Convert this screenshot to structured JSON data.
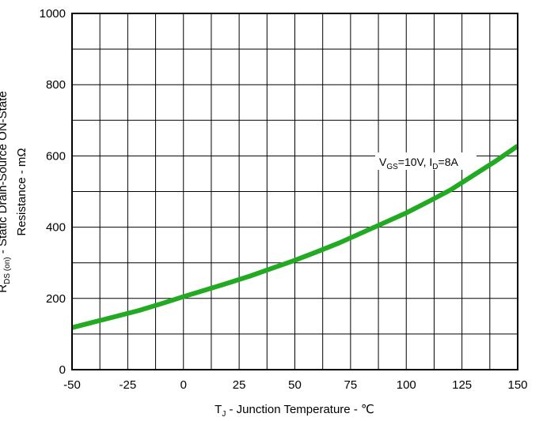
{
  "chart_data": {
    "type": "line",
    "title": "",
    "xlabel": {
      "main": "T",
      "sub": "J",
      "rest": " - Junction Temperature - ℃"
    },
    "ylabel": {
      "line1_main": "R",
      "line1_sub": "DS (on)",
      "line1_rest": " - Static Drain-Source ON-State",
      "line2": "Resistance - mΩ"
    },
    "xlim": [
      -50,
      150
    ],
    "ylim": [
      0,
      1000
    ],
    "x_ticks": [
      -50,
      -25,
      0,
      25,
      50,
      75,
      100,
      125,
      150
    ],
    "y_ticks": [
      0,
      200,
      400,
      600,
      800,
      1000
    ],
    "x_tick_labels": [
      "-50",
      "-25",
      "0",
      "25",
      "50",
      "75",
      "100",
      "125",
      "150"
    ],
    "y_tick_labels": [
      "0",
      "200",
      "400",
      "600",
      "800",
      "1000"
    ],
    "x_grid_step": 12.5,
    "y_grid_step": 100,
    "grid": true,
    "series": [
      {
        "x": [
          -50,
          -40,
          -30,
          -20,
          -10,
          0,
          10,
          20,
          30,
          40,
          50,
          60,
          70,
          80,
          90,
          100,
          110,
          120,
          130,
          140,
          150
        ],
        "y": [
          118,
          134,
          150,
          166,
          185,
          205,
          224,
          243,
          263,
          285,
          307,
          331,
          356,
          384,
          412,
          440,
          472,
          505,
          545,
          585,
          628
        ],
        "color": "#22aa22"
      }
    ],
    "annotation": {
      "v_main": "V",
      "v_sub": "GS",
      "v_rest": "=10V, ",
      "i_main": "I",
      "i_sub": "D",
      "i_rest": "=8A"
    }
  }
}
